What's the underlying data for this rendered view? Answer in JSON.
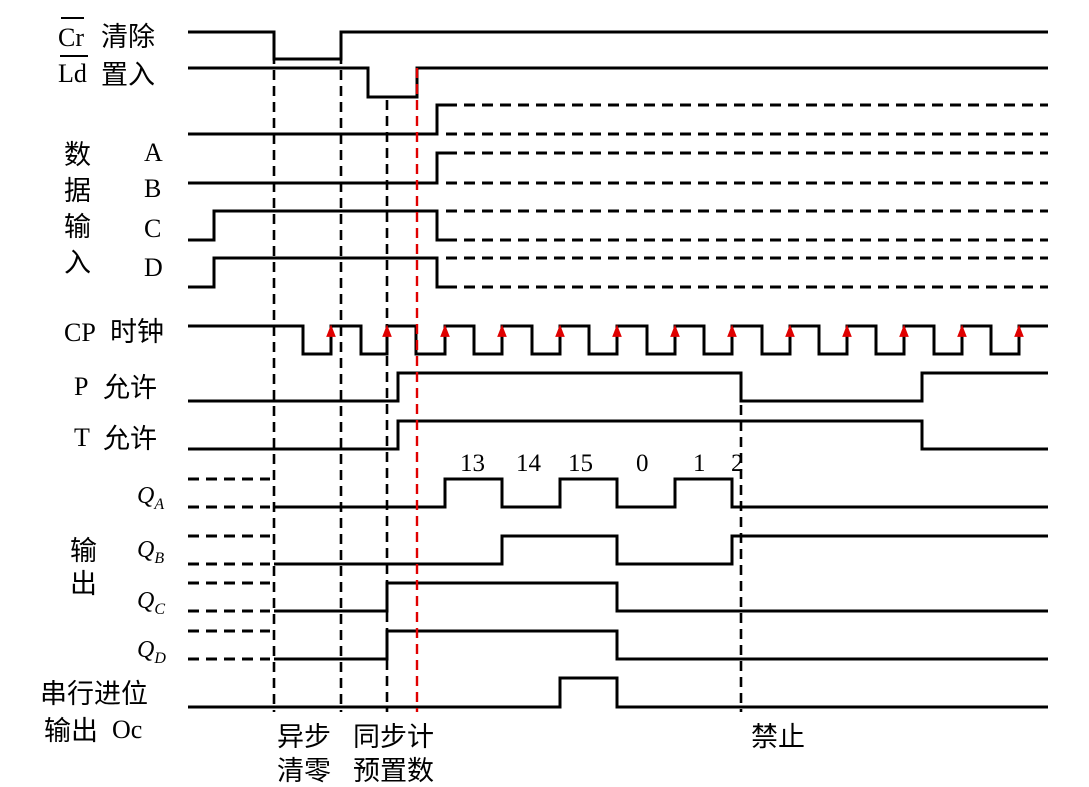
{
  "diagram": {
    "labels": {
      "cr": {
        "base": "Cr",
        "text": "清除"
      },
      "ld": {
        "base": "Ld",
        "text": "置入"
      },
      "data_group": [
        "数",
        "据",
        "输",
        "入"
      ],
      "data_bits": [
        "A",
        "B",
        "C",
        "D"
      ],
      "cp": {
        "base": "CP",
        "text": "时钟"
      },
      "p": {
        "base": "P",
        "text": "允许"
      },
      "t": {
        "base": "T",
        "text": "允许"
      },
      "output_group": [
        "输",
        "出"
      ],
      "outputs": [
        {
          "base": "Q",
          "sub": "A"
        },
        {
          "base": "Q",
          "sub": "B"
        },
        {
          "base": "Q",
          "sub": "C"
        },
        {
          "base": "Q",
          "sub": "D"
        }
      ],
      "carry_line1": "串行进位",
      "carry_line2_cn": "输出",
      "carry_line2_lat": "Oc"
    },
    "counts": [
      "13",
      "14",
      "15",
      "0",
      "1",
      "2"
    ],
    "notes": {
      "async_clear": [
        "异步",
        "清零"
      ],
      "sync_preset": [
        "同步计",
        "预置数"
      ],
      "inhibit": "禁止"
    },
    "colors": {
      "trace": "#000000",
      "marker": "#e00000"
    }
  }
}
